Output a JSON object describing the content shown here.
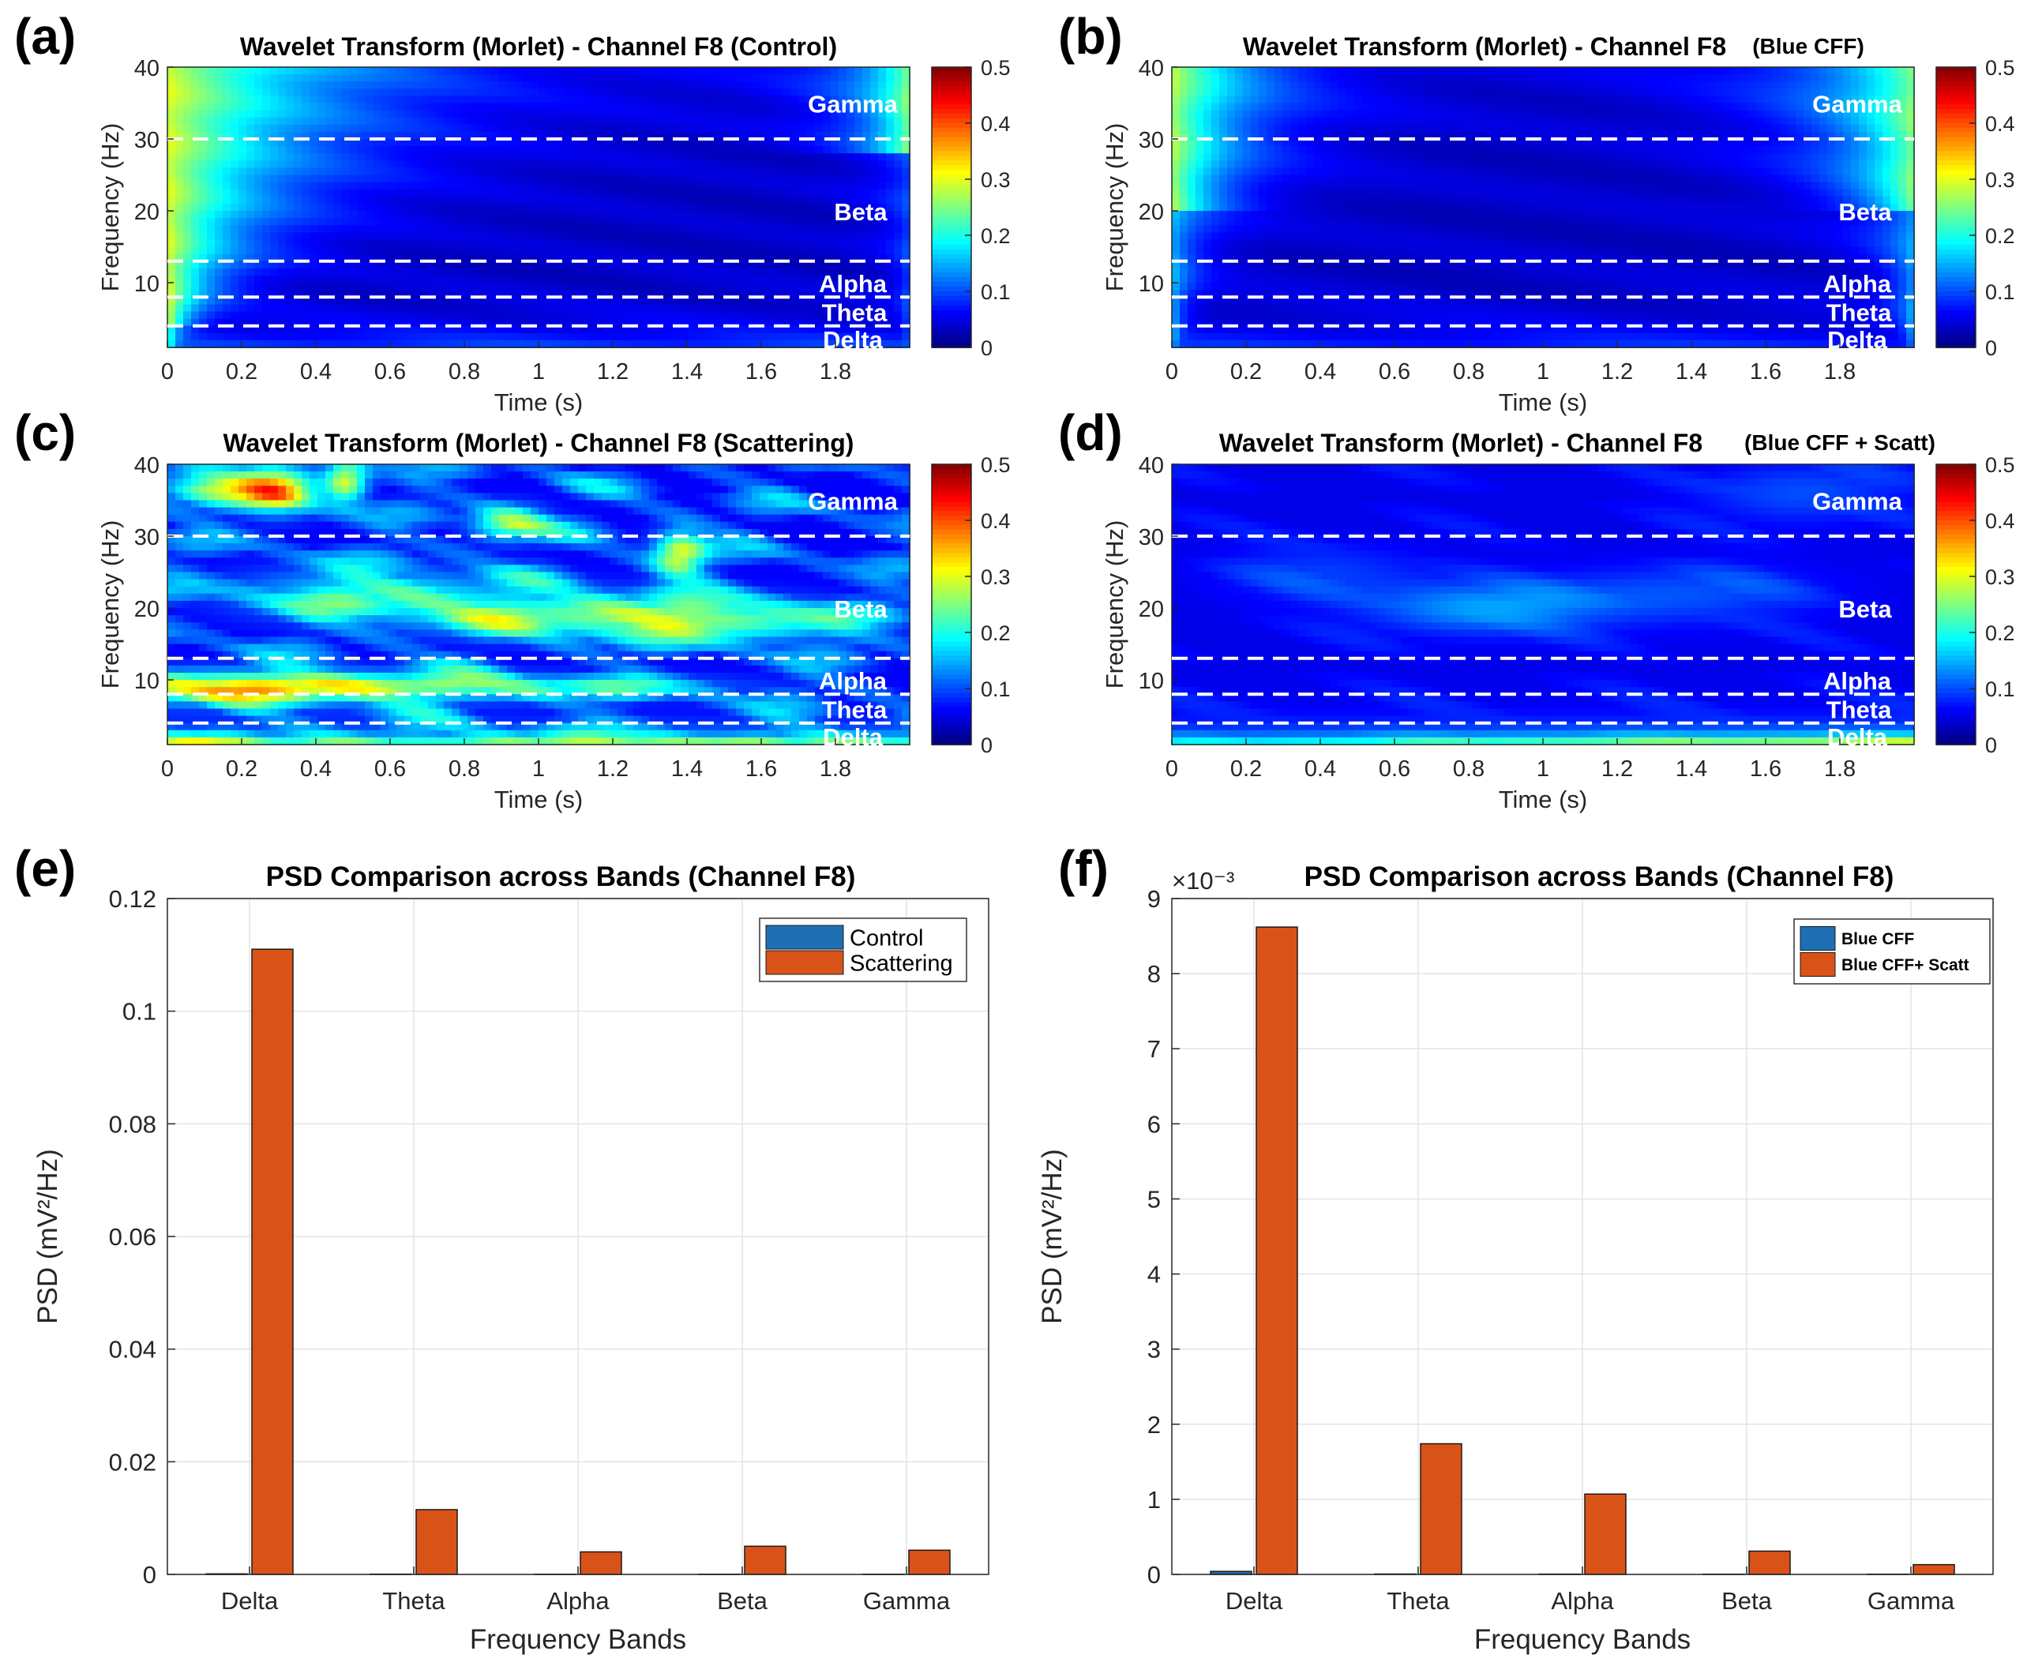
{
  "colors": {
    "control": "#1f6fb5",
    "treatment": "#d95319",
    "axis": "#262626",
    "grid": "#e3e3e3"
  },
  "band_names": [
    "Gamma",
    "Beta",
    "Alpha",
    "Theta",
    "Delta"
  ],
  "colorbar_ticks": [
    "0.5",
    "0.4",
    "0.3",
    "0.2",
    "0.1",
    "0"
  ],
  "chart_data": [
    {
      "panel": "(a)",
      "type": "heatmap",
      "title": "Wavelet Transform (Morlet) - Channel F8 (Control)",
      "xlabel": "Time (s)",
      "ylabel": "Frequency (Hz)",
      "xlim": [
        0,
        2
      ],
      "ylim": [
        1,
        40
      ],
      "xticks": [
        "0",
        "0.2",
        "0.4",
        "0.6",
        "0.8",
        "1",
        "1.2",
        "1.4",
        "1.6",
        "1.8"
      ],
      "yticks": [
        "10",
        "20",
        "30",
        "40"
      ],
      "band_boundaries_hz": [
        30,
        13,
        8,
        4
      ],
      "clim": [
        0,
        0.5
      ],
      "colormap": "jet",
      "pattern": "control"
    },
    {
      "panel": "(b)",
      "type": "heatmap",
      "title": "Wavelet Transform (Morlet) - Channel F8",
      "title_annotation": "(Blue CFF)",
      "xlabel": "Time (s)",
      "ylabel": "Frequency (Hz)",
      "xlim": [
        0,
        2
      ],
      "ylim": [
        1,
        40
      ],
      "xticks": [
        "0",
        "0.2",
        "0.4",
        "0.6",
        "0.8",
        "1",
        "1.2",
        "1.4",
        "1.6",
        "1.8"
      ],
      "yticks": [
        "10",
        "20",
        "30",
        "40"
      ],
      "band_boundaries_hz": [
        30,
        13,
        8,
        4
      ],
      "clim": [
        0,
        0.5
      ],
      "colormap": "jet",
      "pattern": "blue"
    },
    {
      "panel": "(c)",
      "type": "heatmap",
      "title": "Wavelet Transform (Morlet) - Channel F8 (Scattering)",
      "xlabel": "Time (s)",
      "ylabel": "Frequency (Hz)",
      "xlim": [
        0,
        2
      ],
      "ylim": [
        1,
        40
      ],
      "xticks": [
        "0",
        "0.2",
        "0.4",
        "0.6",
        "0.8",
        "1",
        "1.2",
        "1.4",
        "1.6",
        "1.8"
      ],
      "yticks": [
        "10",
        "20",
        "30",
        "40"
      ],
      "band_boundaries_hz": [
        30,
        13,
        8,
        4
      ],
      "clim": [
        0,
        0.5
      ],
      "colormap": "jet",
      "pattern": "scatter"
    },
    {
      "panel": "(d)",
      "type": "heatmap",
      "title": "Wavelet Transform (Morlet) - Channel F8",
      "title_annotation": "(Blue CFF + Scatt)",
      "xlabel": "Time (s)",
      "ylabel": "Frequency (Hz)",
      "xlim": [
        0,
        2
      ],
      "ylim": [
        1,
        40
      ],
      "xticks": [
        "0",
        "0.2",
        "0.4",
        "0.6",
        "0.8",
        "1",
        "1.2",
        "1.4",
        "1.6",
        "1.8"
      ],
      "yticks": [
        "10",
        "20",
        "30",
        "40"
      ],
      "band_boundaries_hz": [
        30,
        13,
        8,
        4
      ],
      "clim": [
        0,
        0.5
      ],
      "colormap": "jet",
      "pattern": "bluescatt"
    },
    {
      "panel": "(e)",
      "type": "bar",
      "title": "PSD Comparison across Bands (Channel F8)",
      "xlabel": "Frequency Bands",
      "ylabel": "PSD (mV²/Hz)",
      "categories": [
        "Delta",
        "Theta",
        "Alpha",
        "Beta",
        "Gamma"
      ],
      "ylim": [
        0,
        0.12
      ],
      "yticks": [
        "0",
        "0.02",
        "0.04",
        "0.06",
        "0.08",
        "0.1",
        "0.12"
      ],
      "grid": true,
      "legend_position": "top-right",
      "series": [
        {
          "name": "Control",
          "values": [
            0.0001,
            5e-05,
            3e-05,
            3e-05,
            3e-05
          ]
        },
        {
          "name": "Scattering",
          "values": [
            0.111,
            0.0115,
            0.004,
            0.005,
            0.0043
          ]
        }
      ]
    },
    {
      "panel": "(f)",
      "type": "bar",
      "title": "PSD Comparison across Bands (Channel F8)",
      "xlabel": "Frequency Bands",
      "ylabel": "PSD (mV²/Hz)",
      "exponent_label": "×10⁻³",
      "categories": [
        "Delta",
        "Theta",
        "Alpha",
        "Beta",
        "Gamma"
      ],
      "ylim": [
        0,
        9
      ],
      "yticks": [
        "0",
        "1",
        "2",
        "3",
        "4",
        "5",
        "6",
        "7",
        "8",
        "9"
      ],
      "grid": true,
      "legend_position": "top-right",
      "series": [
        {
          "name": "Blue CFF",
          "values": [
            0.04,
            0.005,
            0.004,
            0.003,
            0.003
          ]
        },
        {
          "name": "Blue CFF+ Scatt",
          "values": [
            8.62,
            1.74,
            1.07,
            0.31,
            0.13
          ]
        }
      ]
    }
  ]
}
